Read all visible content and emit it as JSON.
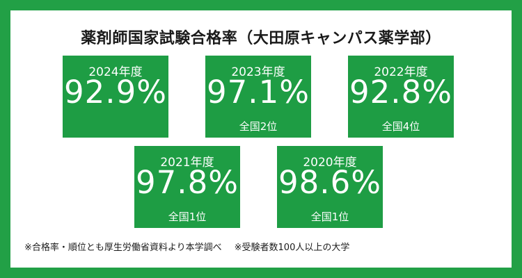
{
  "title": "薬剤師国家試験合格率（大田原キャンパス薬学部）",
  "cards": [
    {
      "year": "2024年度",
      "rate": "92.9%",
      "rank": ""
    },
    {
      "year": "2023年度",
      "rate": "97.1%",
      "rank": "全国2位"
    },
    {
      "year": "2022年度",
      "rate": "92.8%",
      "rank": "全国4位"
    },
    {
      "year": "2021年度",
      "rate": "97.8%",
      "rank": "全国1位"
    },
    {
      "year": "2020年度",
      "rate": "98.6%",
      "rank": "全国1位"
    }
  ],
  "footnotes": [
    "※合格率・順位とも厚生労働省資料より本学調べ",
    "※受験者数100人以上の大学"
  ],
  "colors": {
    "border": "#22a046",
    "card": "#1e9d44",
    "text": "#1a1a1a"
  }
}
